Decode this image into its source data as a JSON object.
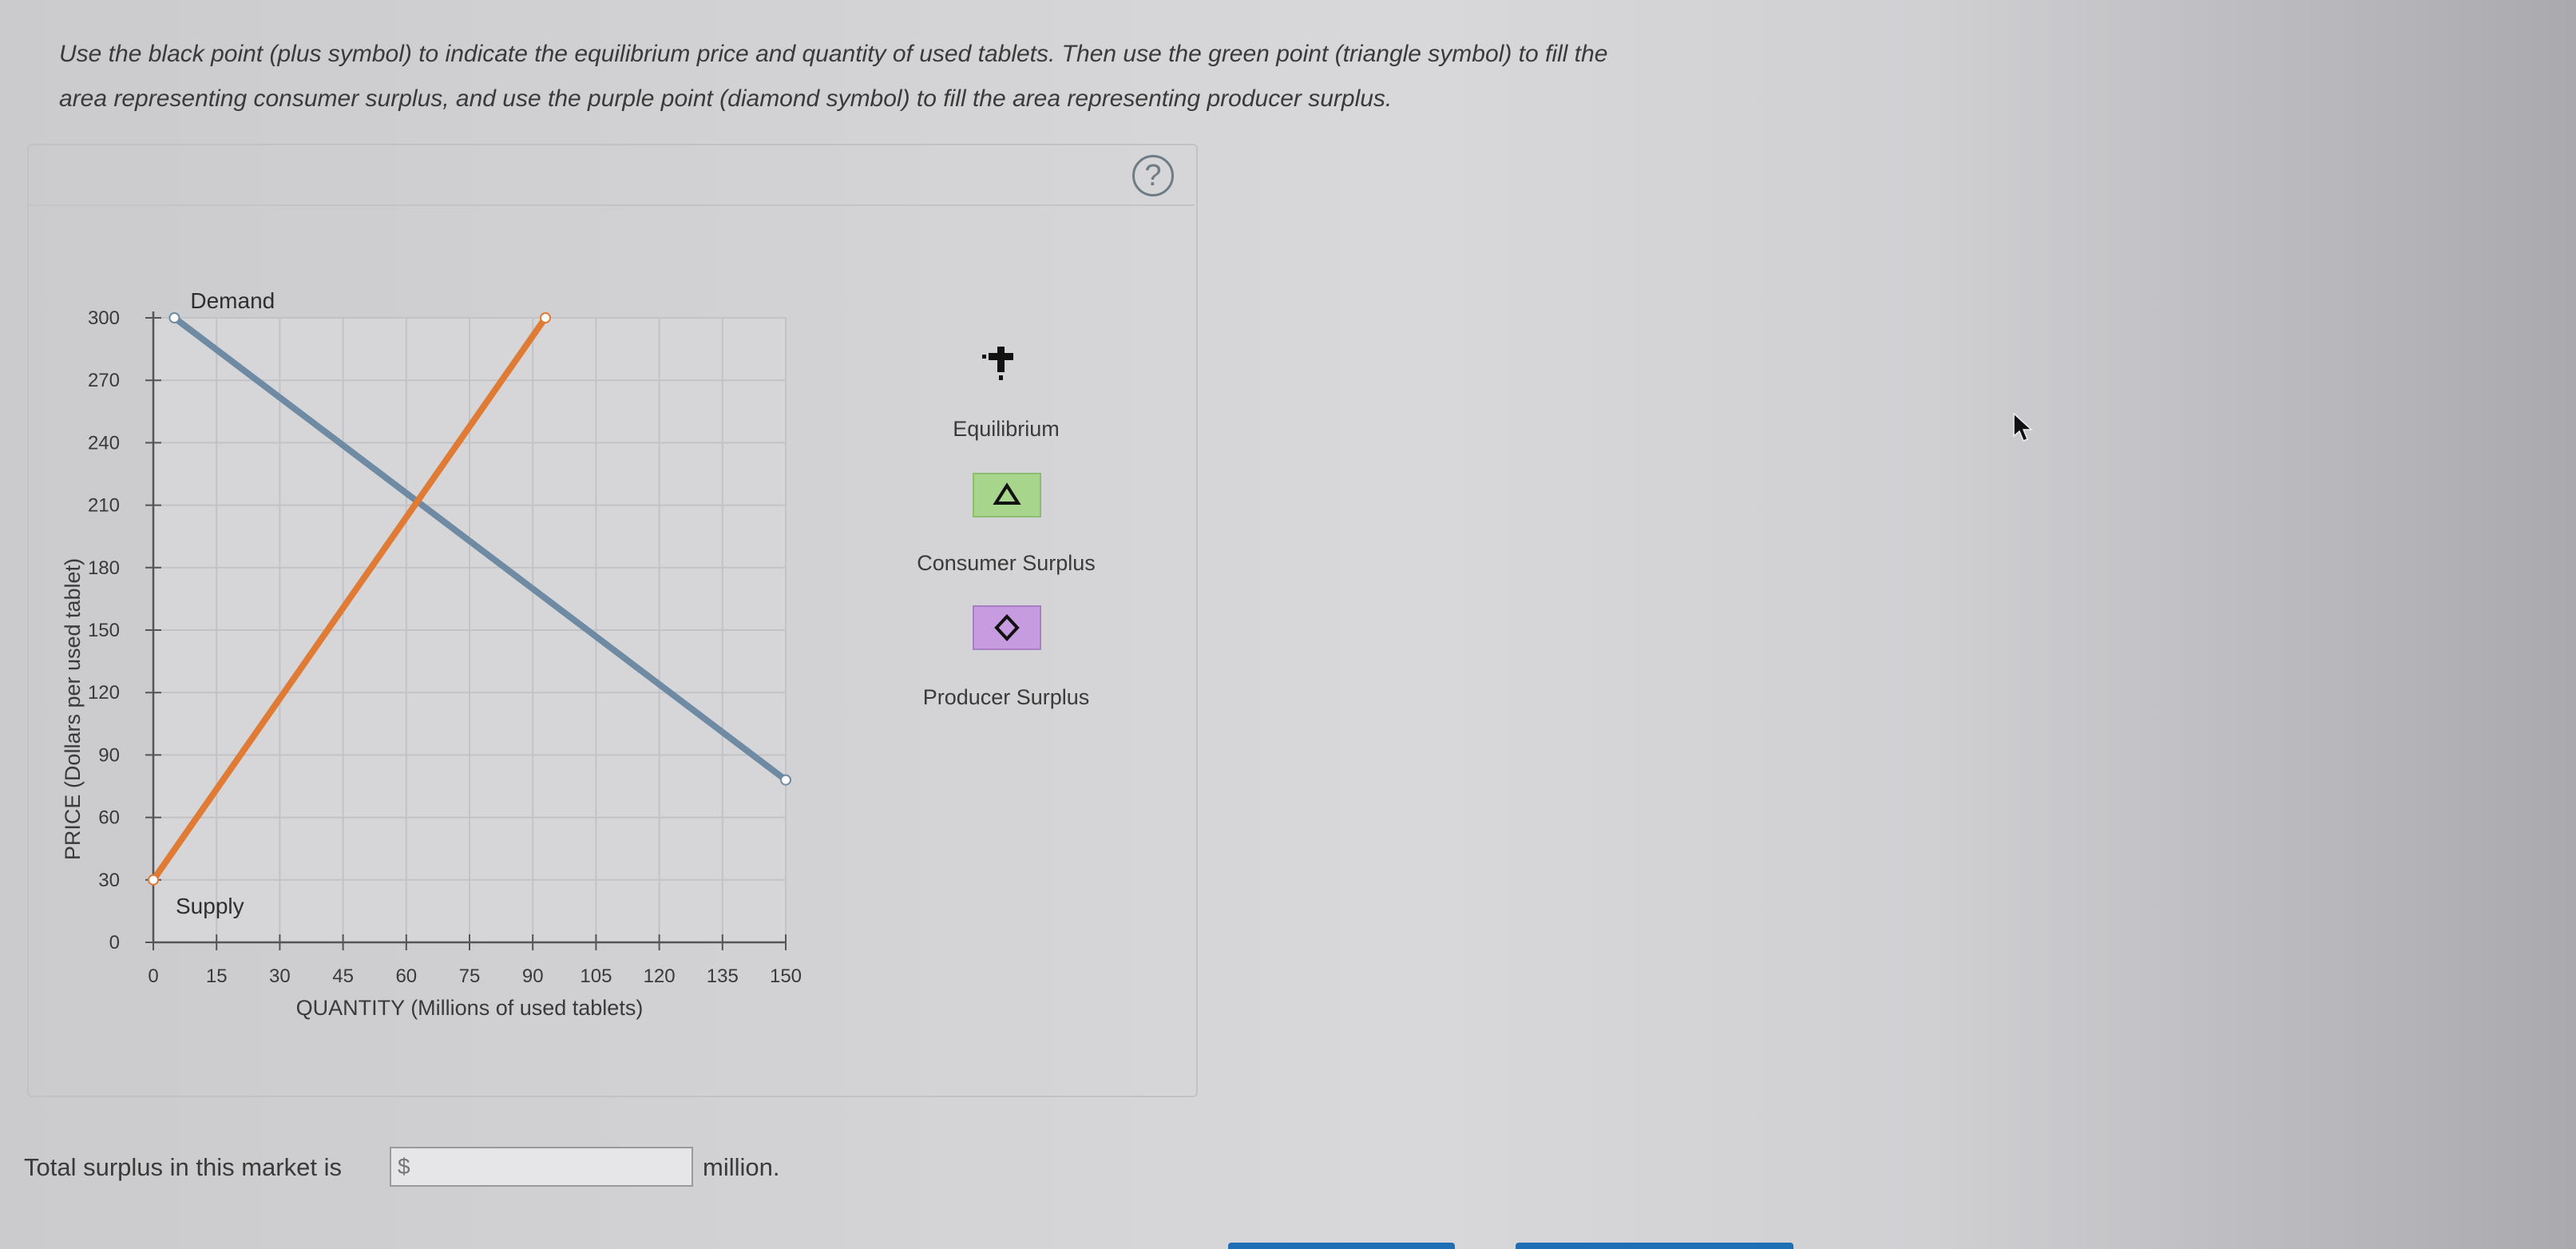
{
  "instructions": {
    "line1": "Use the black point (plus symbol) to indicate the equilibrium price and quantity of used tablets. Then use the green point (triangle symbol) to fill the",
    "line2": "area representing consumer surplus, and use the purple point (diamond symbol) to fill the area representing producer surplus."
  },
  "help": {
    "label": "?"
  },
  "legend": {
    "equilibrium_label": "Equilibrium",
    "consumer_surplus_label": "Consumer Surplus",
    "producer_surplus_label": "Producer Surplus",
    "equilibrium_icon": "plus-icon",
    "consumer_surplus_icon": "triangle-icon",
    "producer_surplus_icon": "diamond-icon",
    "consumer_surplus_color": "#a8d58c",
    "producer_surplus_color": "#c79be0"
  },
  "chart_data": {
    "type": "line",
    "xlabel": "QUANTITY (Millions of used tablets)",
    "ylabel": "PRICE (Dollars per used tablet)",
    "xlim": [
      0,
      150
    ],
    "ylim": [
      0,
      300
    ],
    "xticks": [
      0,
      15,
      30,
      45,
      60,
      75,
      90,
      105,
      120,
      135,
      150
    ],
    "yticks": [
      0,
      30,
      60,
      90,
      120,
      150,
      180,
      210,
      240,
      270,
      300
    ],
    "grid": true,
    "series": [
      {
        "name": "Demand",
        "color": "#6f8aa3",
        "points": [
          [
            5,
            300
          ],
          [
            150,
            78
          ]
        ]
      },
      {
        "name": "Supply",
        "color": "#e07b35",
        "points": [
          [
            0,
            30
          ],
          [
            93,
            300
          ]
        ]
      }
    ]
  },
  "total": {
    "label": "Total surplus in this market is",
    "placeholder": "$",
    "unit": "million."
  },
  "colors": {
    "bottom_button": "#1f6fb5"
  }
}
